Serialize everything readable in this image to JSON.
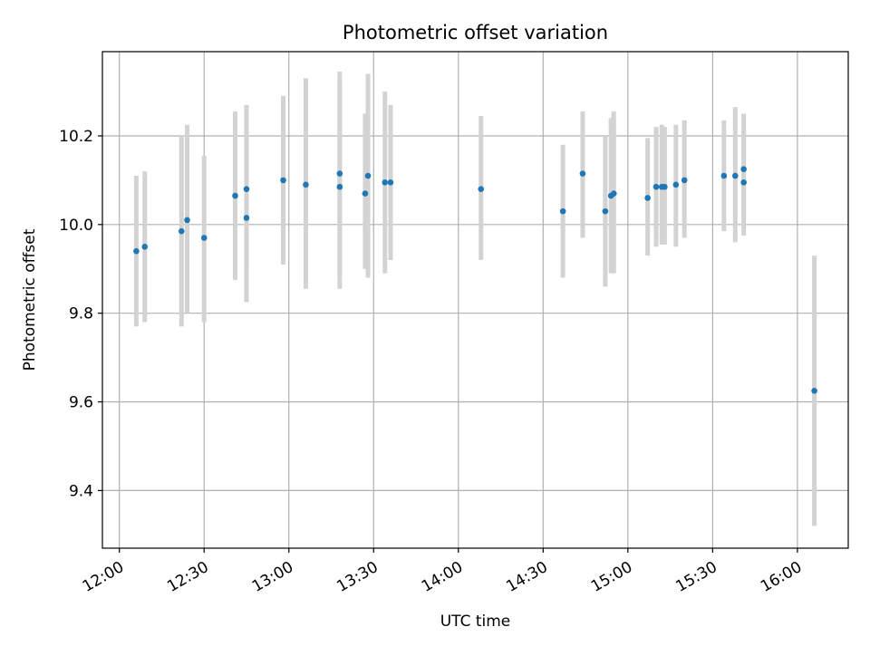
{
  "chart_data": {
    "type": "scatter",
    "title": "Photometric offset variation",
    "xlabel": "UTC time",
    "ylabel": "Photometric offset",
    "x_ticks": [
      "12:00",
      "12:30",
      "13:00",
      "13:30",
      "14:00",
      "14:30",
      "15:00",
      "15:30",
      "16:00"
    ],
    "y_ticks": [
      "9.4",
      "9.6",
      "9.8",
      "10.0",
      "10.2"
    ],
    "xlim": [
      "11:54",
      "16:18"
    ],
    "ylim": [
      9.27,
      10.39
    ],
    "grid": true,
    "colors": {
      "marker": "#1f77b4",
      "errorbar": "#d3d3d3",
      "grid": "#b0b0b0"
    },
    "points": [
      {
        "x": "12:06",
        "y": 9.94,
        "ymin": 9.77,
        "ymax": 10.11
      },
      {
        "x": "12:09",
        "y": 9.95,
        "ymin": 9.78,
        "ymax": 10.12
      },
      {
        "x": "12:22",
        "y": 9.985,
        "ymin": 9.77,
        "ymax": 10.2
      },
      {
        "x": "12:24",
        "y": 10.01,
        "ymin": 9.8,
        "ymax": 10.225
      },
      {
        "x": "12:30",
        "y": 9.97,
        "ymin": 9.78,
        "ymax": 10.155
      },
      {
        "x": "12:41",
        "y": 10.065,
        "ymin": 9.875,
        "ymax": 10.255
      },
      {
        "x": "12:45",
        "y": 10.015,
        "ymin": 9.825,
        "ymax": 10.2
      },
      {
        "x": "12:45",
        "y": 10.08,
        "ymin": 9.9,
        "ymax": 10.27
      },
      {
        "x": "12:58",
        "y": 10.1,
        "ymin": 9.91,
        "ymax": 10.29
      },
      {
        "x": "13:06",
        "y": 10.09,
        "ymin": 9.855,
        "ymax": 10.33
      },
      {
        "x": "13:18",
        "y": 10.085,
        "ymin": 9.855,
        "ymax": 10.32
      },
      {
        "x": "13:18",
        "y": 10.115,
        "ymin": 9.885,
        "ymax": 10.345
      },
      {
        "x": "13:27",
        "y": 10.07,
        "ymin": 9.9,
        "ymax": 10.25
      },
      {
        "x": "13:28",
        "y": 10.11,
        "ymin": 9.88,
        "ymax": 10.34
      },
      {
        "x": "13:34",
        "y": 10.095,
        "ymin": 9.89,
        "ymax": 10.3
      },
      {
        "x": "13:36",
        "y": 10.095,
        "ymin": 9.92,
        "ymax": 10.27
      },
      {
        "x": "14:08",
        "y": 10.08,
        "ymin": 9.92,
        "ymax": 10.245
      },
      {
        "x": "14:37",
        "y": 10.03,
        "ymin": 9.88,
        "ymax": 10.18
      },
      {
        "x": "14:44",
        "y": 10.115,
        "ymin": 9.97,
        "ymax": 10.255
      },
      {
        "x": "14:52",
        "y": 10.03,
        "ymin": 9.86,
        "ymax": 10.2
      },
      {
        "x": "14:54",
        "y": 10.065,
        "ymin": 9.89,
        "ymax": 10.24
      },
      {
        "x": "14:55",
        "y": 10.07,
        "ymin": 9.89,
        "ymax": 10.255
      },
      {
        "x": "15:07",
        "y": 10.06,
        "ymin": 9.93,
        "ymax": 10.195
      },
      {
        "x": "15:10",
        "y": 10.085,
        "ymin": 9.95,
        "ymax": 10.22
      },
      {
        "x": "15:12",
        "y": 10.085,
        "ymin": 9.955,
        "ymax": 10.225
      },
      {
        "x": "15:13",
        "y": 10.085,
        "ymin": 9.955,
        "ymax": 10.22
      },
      {
        "x": "15:17",
        "y": 10.09,
        "ymin": 9.95,
        "ymax": 10.225
      },
      {
        "x": "15:20",
        "y": 10.1,
        "ymin": 9.97,
        "ymax": 10.235
      },
      {
        "x": "15:34",
        "y": 10.11,
        "ymin": 9.985,
        "ymax": 10.235
      },
      {
        "x": "15:38",
        "y": 10.11,
        "ymin": 9.96,
        "ymax": 10.265
      },
      {
        "x": "15:41",
        "y": 10.125,
        "ymin": 10.01,
        "ymax": 10.25
      },
      {
        "x": "15:41",
        "y": 10.095,
        "ymin": 9.975,
        "ymax": 10.215
      },
      {
        "x": "16:06",
        "y": 9.625,
        "ymin": 9.32,
        "ymax": 9.93
      }
    ]
  }
}
